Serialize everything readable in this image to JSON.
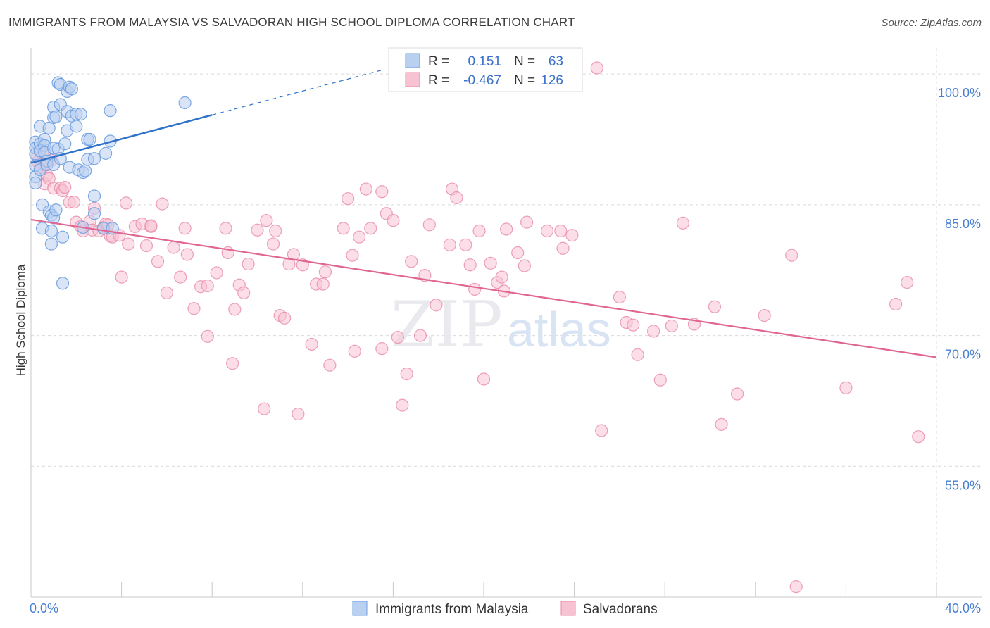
{
  "title": "IMMIGRANTS FROM MALAYSIA VS SALVADORAN HIGH SCHOOL DIPLOMA CORRELATION CHART",
  "source": "Source: ZipAtlas.com",
  "watermark": {
    "zip": "ZIP",
    "atlas": "atlas"
  },
  "colors": {
    "blue": "#6d9ee0",
    "blue_fill": "#b9d0f1",
    "blue_line": "#2f72c9",
    "pink": "#e889a8",
    "pink_fill": "#f7c3d3",
    "pink_line": "#e06593",
    "axis_text": "#4a7fd0",
    "grid": "#d9d9d9"
  },
  "legend": {
    "r_label": "R =",
    "n_label": "N =",
    "series": [
      {
        "r": "0.151",
        "n": "63"
      },
      {
        "r": "-0.467",
        "n": "126"
      }
    ]
  },
  "chart_data": {
    "type": "scatter",
    "title": "IMMIGRANTS FROM MALAYSIA VS SALVADORAN HIGH SCHOOL DIPLOMA CORRELATION CHART",
    "xlabel": "",
    "ylabel": "High School Diploma",
    "xlim": [
      0,
      40
    ],
    "ylim": [
      40,
      103
    ],
    "x_tick_labels": [
      "0.0%",
      "40.0%"
    ],
    "y_ticks": [
      55,
      70,
      85,
      100
    ],
    "y_tick_labels": [
      "55.0%",
      "70.0%",
      "85.0%",
      "100.0%"
    ],
    "grid": true,
    "legend_position": "bottom",
    "series": [
      {
        "name": "Immigrants from Malaysia",
        "r": 0.151,
        "n": 63,
        "trend": {
          "x0": 0,
          "y0": 89.8,
          "x1": 8.0,
          "y1": 95.3,
          "dash_to_x": 15.5
        },
        "points": [
          [
            0.2,
            92.2
          ],
          [
            0.2,
            91.5
          ],
          [
            0.2,
            90.8
          ],
          [
            0.2,
            89.5
          ],
          [
            0.2,
            88.2
          ],
          [
            0.2,
            87.5
          ],
          [
            0.4,
            94.0
          ],
          [
            0.4,
            92.0
          ],
          [
            0.4,
            91.2
          ],
          [
            0.4,
            89.0
          ],
          [
            0.5,
            85.0
          ],
          [
            0.5,
            82.3
          ],
          [
            0.6,
            92.5
          ],
          [
            0.6,
            91.8
          ],
          [
            0.6,
            91.0
          ],
          [
            0.7,
            90.0
          ],
          [
            0.7,
            89.6
          ],
          [
            0.8,
            93.8
          ],
          [
            0.8,
            84.2
          ],
          [
            0.9,
            83.8
          ],
          [
            0.9,
            82.0
          ],
          [
            0.9,
            80.5
          ],
          [
            1.0,
            96.2
          ],
          [
            1.0,
            95.0
          ],
          [
            1.0,
            91.5
          ],
          [
            1.0,
            89.6
          ],
          [
            1.0,
            83.5
          ],
          [
            1.1,
            84.4
          ],
          [
            1.1,
            95.1
          ],
          [
            1.2,
            99.0
          ],
          [
            1.2,
            91.4
          ],
          [
            1.3,
            96.5
          ],
          [
            1.3,
            98.8
          ],
          [
            1.3,
            90.3
          ],
          [
            1.4,
            81.3
          ],
          [
            1.4,
            76.0
          ],
          [
            1.5,
            92.0
          ],
          [
            1.6,
            98.0
          ],
          [
            1.6,
            95.7
          ],
          [
            1.6,
            93.5
          ],
          [
            1.7,
            89.3
          ],
          [
            1.7,
            98.5
          ],
          [
            1.8,
            95.2
          ],
          [
            1.8,
            98.3
          ],
          [
            2.0,
            95.4
          ],
          [
            2.0,
            94.0
          ],
          [
            2.1,
            89.0
          ],
          [
            2.2,
            95.4
          ],
          [
            2.3,
            82.4
          ],
          [
            2.3,
            88.7
          ],
          [
            2.4,
            88.9
          ],
          [
            2.5,
            92.5
          ],
          [
            2.5,
            90.2
          ],
          [
            2.6,
            92.5
          ],
          [
            2.8,
            90.3
          ],
          [
            2.8,
            86.0
          ],
          [
            2.8,
            84.0
          ],
          [
            3.2,
            82.3
          ],
          [
            3.3,
            90.9
          ],
          [
            3.5,
            95.8
          ],
          [
            3.5,
            92.3
          ],
          [
            3.6,
            82.3
          ],
          [
            6.8,
            96.7
          ]
        ]
      },
      {
        "name": "Salvadorans",
        "r": -0.467,
        "n": 126,
        "trend": {
          "x0": 0,
          "y0": 83.3,
          "x1": 40,
          "y1": 67.5
        },
        "points": [
          [
            0.3,
            90.6
          ],
          [
            0.3,
            89.9
          ],
          [
            0.4,
            89.2
          ],
          [
            0.5,
            90.9
          ],
          [
            0.6,
            89.5
          ],
          [
            0.6,
            87.4
          ],
          [
            0.7,
            88.4
          ],
          [
            0.8,
            88.0
          ],
          [
            0.9,
            90.1
          ],
          [
            1.0,
            86.9
          ],
          [
            1.3,
            86.9
          ],
          [
            1.4,
            86.6
          ],
          [
            1.5,
            87.0
          ],
          [
            1.7,
            85.3
          ],
          [
            1.9,
            85.3
          ],
          [
            2.0,
            83.0
          ],
          [
            2.2,
            82.5
          ],
          [
            2.3,
            82.0
          ],
          [
            2.6,
            83.1
          ],
          [
            2.7,
            82.1
          ],
          [
            2.8,
            84.6
          ],
          [
            3.0,
            82.0
          ],
          [
            3.2,
            82.4
          ],
          [
            3.3,
            82.8
          ],
          [
            3.4,
            82.7
          ],
          [
            3.5,
            81.4
          ],
          [
            3.6,
            81.3
          ],
          [
            3.9,
            81.5
          ],
          [
            4.0,
            76.7
          ],
          [
            4.2,
            85.2
          ],
          [
            4.3,
            80.5
          ],
          [
            4.6,
            82.5
          ],
          [
            4.9,
            82.8
          ],
          [
            5.1,
            80.3
          ],
          [
            5.3,
            82.5
          ],
          [
            5.3,
            82.6
          ],
          [
            5.6,
            78.5
          ],
          [
            5.8,
            85.1
          ],
          [
            6.0,
            74.9
          ],
          [
            6.3,
            80.1
          ],
          [
            6.6,
            76.7
          ],
          [
            6.8,
            82.3
          ],
          [
            6.9,
            79.3
          ],
          [
            7.2,
            73.1
          ],
          [
            7.5,
            75.6
          ],
          [
            7.8,
            75.7
          ],
          [
            7.8,
            69.9
          ],
          [
            8.2,
            77.2
          ],
          [
            8.6,
            82.3
          ],
          [
            8.7,
            79.5
          ],
          [
            8.9,
            66.8
          ],
          [
            9.0,
            73.0
          ],
          [
            9.2,
            75.8
          ],
          [
            9.4,
            74.9
          ],
          [
            9.6,
            78.2
          ],
          [
            10.0,
            82.1
          ],
          [
            10.3,
            61.6
          ],
          [
            10.4,
            83.2
          ],
          [
            10.7,
            80.5
          ],
          [
            10.8,
            82.0
          ],
          [
            11.0,
            72.3
          ],
          [
            11.2,
            72.0
          ],
          [
            11.4,
            78.2
          ],
          [
            11.6,
            79.3
          ],
          [
            11.8,
            61.0
          ],
          [
            12.0,
            78.1
          ],
          [
            12.4,
            69.0
          ],
          [
            12.6,
            75.9
          ],
          [
            12.9,
            75.9
          ],
          [
            13.0,
            77.3
          ],
          [
            13.2,
            66.6
          ],
          [
            13.8,
            82.3
          ],
          [
            14.0,
            85.7
          ],
          [
            14.2,
            79.2
          ],
          [
            14.3,
            68.2
          ],
          [
            14.5,
            81.3
          ],
          [
            14.8,
            86.8
          ],
          [
            15.0,
            82.3
          ],
          [
            15.5,
            86.5
          ],
          [
            15.5,
            68.5
          ],
          [
            15.7,
            84.0
          ],
          [
            16.0,
            83.2
          ],
          [
            16.2,
            69.8
          ],
          [
            16.4,
            62.0
          ],
          [
            16.6,
            65.6
          ],
          [
            16.8,
            78.5
          ],
          [
            17.2,
            70.0
          ],
          [
            17.4,
            76.9
          ],
          [
            17.6,
            82.7
          ],
          [
            17.9,
            73.5
          ],
          [
            18.5,
            80.4
          ],
          [
            18.6,
            86.8
          ],
          [
            18.8,
            85.8
          ],
          [
            19.2,
            80.4
          ],
          [
            19.4,
            78.1
          ],
          [
            19.6,
            75.3
          ],
          [
            19.8,
            82.0
          ],
          [
            20.0,
            65.0
          ],
          [
            20.3,
            78.3
          ],
          [
            20.6,
            76.1
          ],
          [
            20.8,
            76.7
          ],
          [
            20.9,
            75.1
          ],
          [
            21.0,
            82.2
          ],
          [
            21.5,
            79.5
          ],
          [
            21.8,
            78.0
          ],
          [
            21.9,
            83.0
          ],
          [
            22.8,
            82.0
          ],
          [
            23.4,
            82.0
          ],
          [
            23.5,
            80.0
          ],
          [
            23.9,
            81.5
          ],
          [
            25.0,
            100.7
          ],
          [
            25.2,
            59.1
          ],
          [
            26.0,
            74.4
          ],
          [
            26.3,
            71.5
          ],
          [
            26.6,
            71.2
          ],
          [
            26.8,
            67.8
          ],
          [
            27.5,
            70.5
          ],
          [
            27.8,
            64.9
          ],
          [
            28.3,
            71.1
          ],
          [
            28.8,
            82.9
          ],
          [
            29.3,
            71.3
          ],
          [
            30.2,
            73.3
          ],
          [
            30.5,
            59.8
          ],
          [
            31.2,
            63.3
          ],
          [
            32.4,
            72.3
          ],
          [
            33.6,
            79.2
          ],
          [
            33.8,
            41.2
          ],
          [
            36.0,
            64.0
          ],
          [
            38.2,
            73.6
          ],
          [
            38.7,
            76.1
          ],
          [
            39.2,
            58.4
          ]
        ]
      }
    ]
  }
}
